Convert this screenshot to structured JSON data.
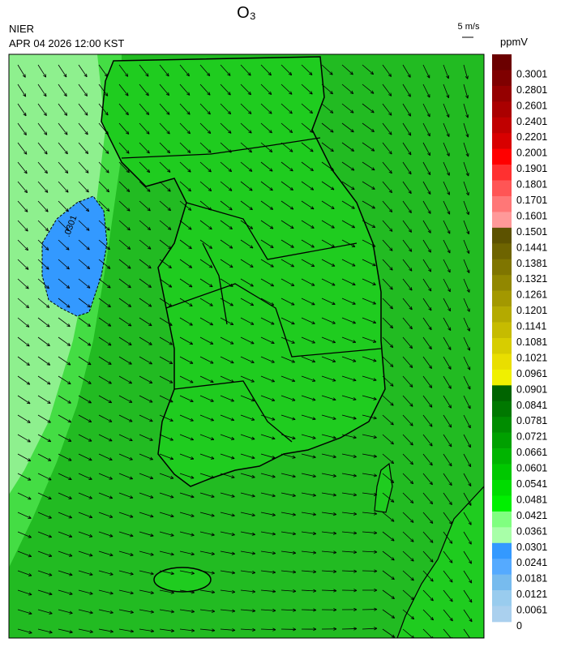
{
  "header": {
    "title": "O₃",
    "agency": "NIER",
    "datetime": "APR 04 2026 12:00 KST",
    "wind_scale": "5 m/s",
    "unit": "ppmV"
  },
  "map": {
    "contour_label": ".0301"
  },
  "colorbar": {
    "labels": [
      0.3001,
      0.2801,
      0.2601,
      0.2401,
      0.2201,
      0.2001,
      0.1901,
      0.1801,
      0.1701,
      0.1601,
      0.1501,
      0.1441,
      0.1381,
      0.1321,
      0.1261,
      0.1201,
      0.1141,
      0.1081,
      0.1021,
      0.0961,
      0.0901,
      0.0841,
      0.0781,
      0.0721,
      0.0661,
      0.0601,
      0.0541,
      0.0481,
      0.0421,
      0.0361,
      0.0301,
      0.0241,
      0.0181,
      0.0121,
      0.0061,
      0
    ],
    "colors": [
      "#6b0000",
      "#7f0000",
      "#950000",
      "#aa0000",
      "#c00000",
      "#d80000",
      "#ff0000",
      "#ff3030",
      "#ff5555",
      "#ff7777",
      "#ff9999",
      "#5c5200",
      "#6e6400",
      "#7f7500",
      "#918700",
      "#a39800",
      "#b4aa00",
      "#c6bb00",
      "#d7cd00",
      "#e9de00",
      "#f0f000",
      "#006400",
      "#007800",
      "#008c00",
      "#00a000",
      "#00b400",
      "#00c800",
      "#00dc00",
      "#00f000",
      "#80ff80",
      "#a8ffa8",
      "#3399ff",
      "#55aaff",
      "#77bbee",
      "#99ccee",
      "#aad0ee"
    ]
  }
}
